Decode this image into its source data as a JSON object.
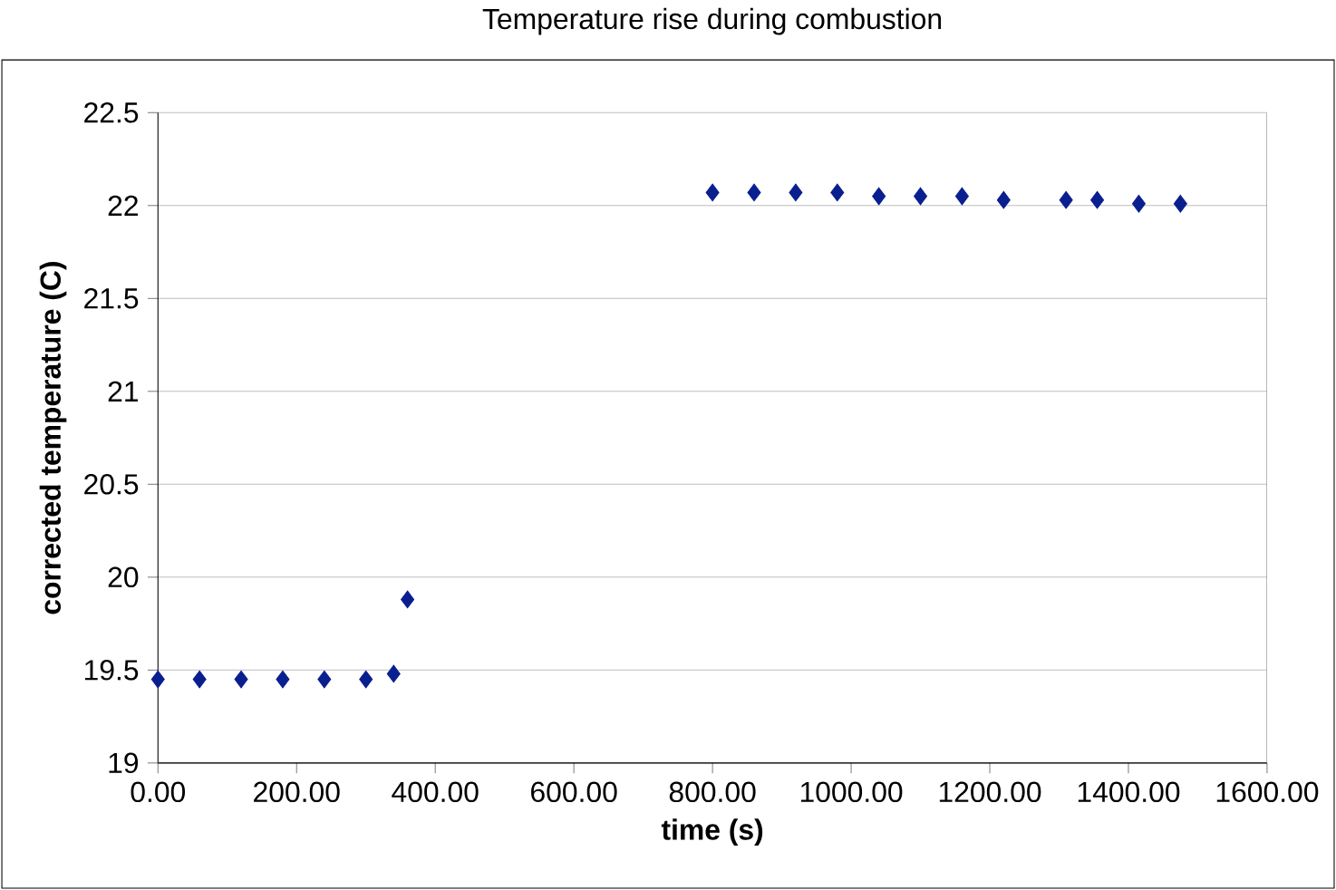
{
  "chart_data": {
    "type": "scatter",
    "title": "Temperature rise during combustion",
    "xlabel": "time   (s)",
    "ylabel": "corrected temperature (C)",
    "x": [
      0,
      60,
      120,
      180,
      240,
      300,
      340,
      360,
      800,
      860,
      920,
      980,
      1040,
      1100,
      1160,
      1220,
      1310,
      1355,
      1415,
      1475
    ],
    "values": [
      19.45,
      19.45,
      19.45,
      19.45,
      19.45,
      19.45,
      19.48,
      19.88,
      22.07,
      22.07,
      22.07,
      22.07,
      22.05,
      22.05,
      22.05,
      22.03,
      22.03,
      22.03,
      22.01,
      22.01
    ],
    "color": "#0a1f8f",
    "marker": "diamond",
    "grid": "y",
    "xlim": [
      0,
      1600
    ],
    "ylim": [
      19,
      22.5
    ],
    "xticks": [
      {
        "value": 0,
        "label": "0.00"
      },
      {
        "value": 200,
        "label": "200.00"
      },
      {
        "value": 400,
        "label": "400.00"
      },
      {
        "value": 600,
        "label": "600.00"
      },
      {
        "value": 800,
        "label": "800.00"
      },
      {
        "value": 1000,
        "label": "1000.00"
      },
      {
        "value": 1200,
        "label": "1200.00"
      },
      {
        "value": 1400,
        "label": "1400.00"
      },
      {
        "value": 1600,
        "label": "1600.00"
      }
    ],
    "yticks": [
      19,
      19.5,
      20,
      20.5,
      21,
      21.5,
      22,
      22.5
    ]
  }
}
